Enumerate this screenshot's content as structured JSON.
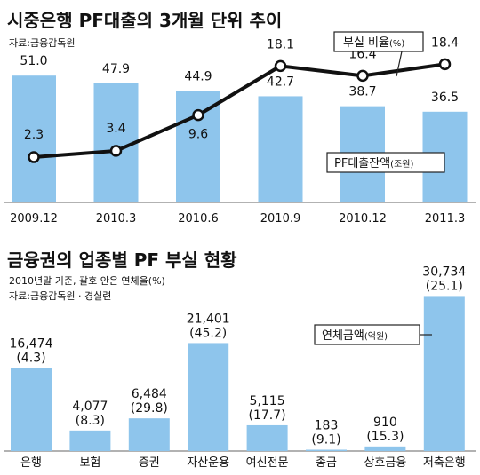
{
  "chart_data": [
    {
      "type": "bar",
      "title": "시중은행 PF대출의 3개월 단위 추이",
      "source": "자료:금융감독원",
      "categories": [
        "2009.12",
        "2010.3",
        "2010.6",
        "2010.9",
        "2010.12",
        "2011.3"
      ],
      "series": [
        {
          "name": "PF대출잔액",
          "unit": "(조원)",
          "type": "bar",
          "values": [
            51.0,
            47.9,
            44.9,
            42.7,
            38.7,
            36.5
          ]
        },
        {
          "name": "부실 비율",
          "unit": "(%)",
          "type": "line",
          "values": [
            2.3,
            3.4,
            9.6,
            18.1,
            16.4,
            18.4
          ]
        }
      ],
      "value_labels": {
        "bars": [
          "51.0",
          "47.9",
          "44.9",
          "42.7",
          "38.7",
          "36.5"
        ],
        "line": [
          "2.3",
          "3.4",
          "9.6",
          "18.1",
          "16.4",
          "18.4"
        ]
      },
      "grid": false,
      "colors": {
        "bar": "#8ec5ec",
        "line": "#111111"
      }
    },
    {
      "type": "bar",
      "title": "금융권의 업종별 PF 부실 현황",
      "subtitle": "2010년말 기준, 괄호 안은 연체율(%)",
      "source": "자료:금융감독원 · 경실련",
      "categories": [
        "은행",
        "보험",
        "증권",
        "자산운용",
        "여신전문",
        "종금",
        "상호금융",
        "저축은행"
      ],
      "series": [
        {
          "name": "연체금액",
          "unit": "(억원)",
          "values": [
            16474,
            4077,
            6484,
            21401,
            5115,
            183,
            910,
            30734
          ]
        }
      ],
      "delinquency_rates": [
        4.3,
        8.3,
        29.8,
        45.2,
        17.7,
        9.1,
        15.3,
        25.1
      ],
      "value_labels": [
        "16,474",
        "4,077",
        "6,484",
        "21,401",
        "5,115",
        "183",
        "910",
        "30,734"
      ],
      "rate_labels": [
        "(4.3)",
        "(8.3)",
        "(29.8)",
        "(45.2)",
        "(17.7)",
        "(9.1)",
        "(15.3)",
        "(25.1)"
      ],
      "grid": false,
      "colors": {
        "bar": "#8ec5ec"
      }
    }
  ]
}
